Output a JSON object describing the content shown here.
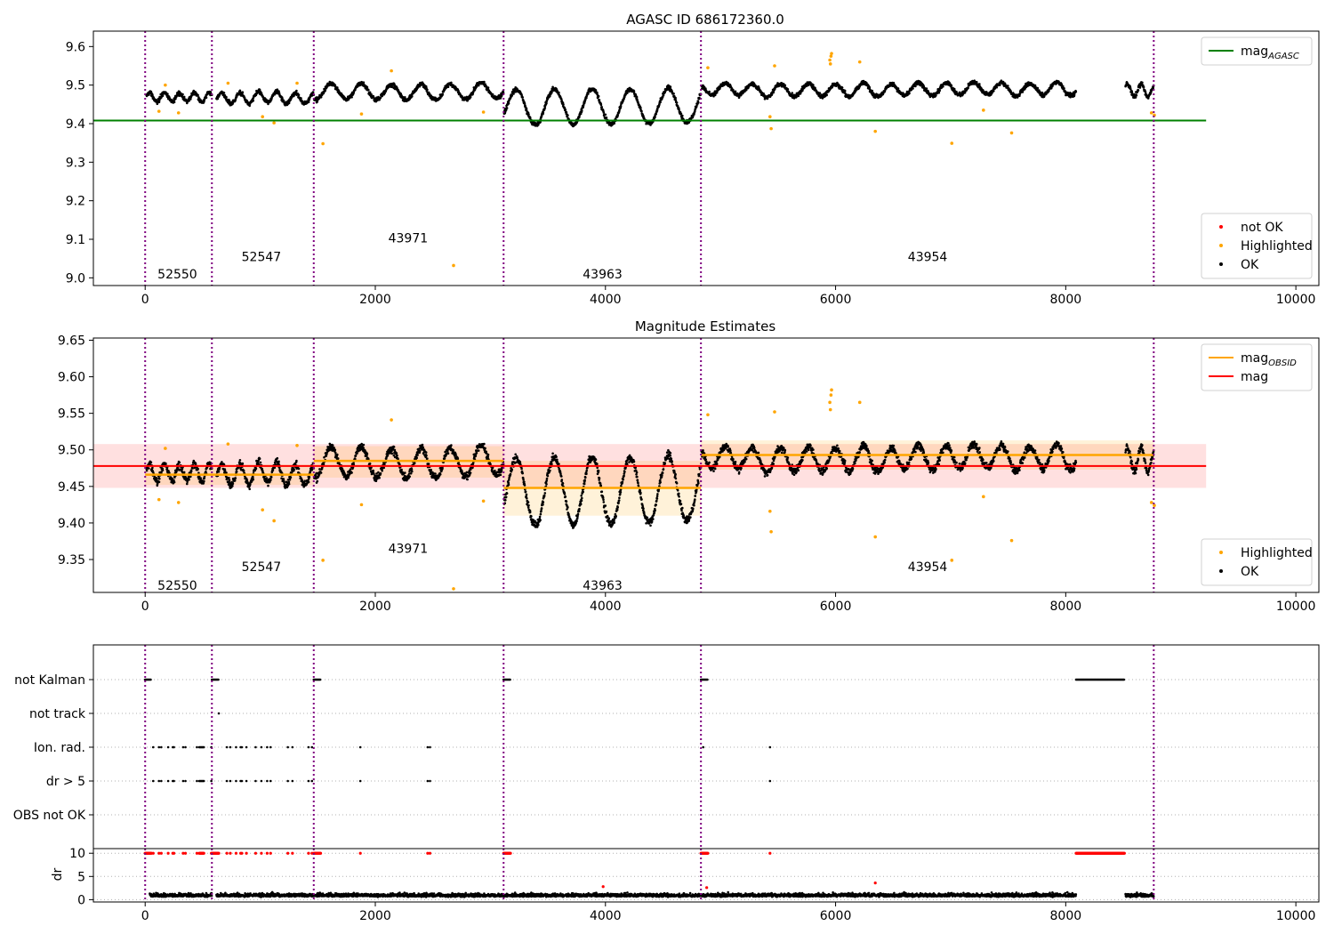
{
  "chart_data": [
    {
      "id": "agasc",
      "type": "scatter",
      "title": "AGASC ID 686172360.0",
      "xlim": [
        -450,
        10200
      ],
      "ylim": [
        8.98,
        9.64
      ],
      "xticks": [
        0,
        2000,
        4000,
        6000,
        8000,
        10000
      ],
      "xtick_labels": [
        "0",
        "2000",
        "4000",
        "6000",
        "8000",
        "10000"
      ],
      "yticks": [
        9.0,
        9.1,
        9.2,
        9.3,
        9.4,
        9.5,
        9.6
      ],
      "ytick_labels": [
        "9.0",
        "9.1",
        "9.2",
        "9.3",
        "9.4",
        "9.5",
        "9.6"
      ],
      "vlines": [
        0,
        580,
        1465,
        3115,
        4830,
        8765
      ],
      "obsid_labels": [
        {
          "text": "52550",
          "x": 280,
          "y": 9.01
        },
        {
          "text": "52547",
          "x": 1010,
          "y": 9.055
        },
        {
          "text": "43971",
          "x": 2285,
          "y": 9.103
        },
        {
          "text": "43963",
          "x": 3975,
          "y": 9.01
        },
        {
          "text": "43954",
          "x": 6800,
          "y": 9.055
        }
      ],
      "hlines": [
        {
          "name": "mag_AGASC",
          "y": 9.408,
          "x0": -450,
          "x1": 9220,
          "color": "#008000"
        }
      ],
      "segments": [
        {
          "x0": 10,
          "x1": 580,
          "base": 9.468,
          "amp": 0.012,
          "period": 130
        },
        {
          "x0": 620,
          "x1": 1465,
          "base": 9.466,
          "amp": 0.015,
          "period": 160
        },
        {
          "x0": 1470,
          "x1": 3115,
          "base": 9.483,
          "amp": 0.02,
          "period": 260
        },
        {
          "x0": 3120,
          "x1": 4830,
          "base": 9.445,
          "amp": 0.045,
          "period": 330
        },
        {
          "x0": 4835,
          "x1": 8090,
          "base": 9.49,
          "amp": 0.016,
          "period": 240
        },
        {
          "x0": 8520,
          "x1": 8765,
          "base": 9.488,
          "amp": 0.016,
          "period": 120
        }
      ],
      "highlighted": [
        [
          120,
          9.432
        ],
        [
          175,
          9.5
        ],
        [
          290,
          9.428
        ],
        [
          720,
          9.505
        ],
        [
          1020,
          9.418
        ],
        [
          1120,
          9.402
        ],
        [
          1320,
          9.505
        ],
        [
          1545,
          9.348
        ],
        [
          1880,
          9.425
        ],
        [
          2140,
          9.537
        ],
        [
          2680,
          9.032
        ],
        [
          2940,
          9.43
        ],
        [
          4890,
          9.545
        ],
        [
          5430,
          9.418
        ],
        [
          5440,
          9.387
        ],
        [
          5470,
          9.55
        ],
        [
          5950,
          9.565
        ],
        [
          5960,
          9.575
        ],
        [
          5955,
          9.555
        ],
        [
          5965,
          9.582
        ],
        [
          6210,
          9.56
        ],
        [
          6345,
          9.38
        ],
        [
          7010,
          9.349
        ],
        [
          7285,
          9.435
        ],
        [
          7530,
          9.376
        ],
        [
          8745,
          9.428
        ],
        [
          8770,
          9.422
        ]
      ],
      "legends": [
        {
          "position": "upper right",
          "entries": [
            {
              "label": "mag",
              "sub": "AGASC",
              "kind": "line",
              "color": "#008000"
            }
          ]
        },
        {
          "position": "lower right",
          "entries": [
            {
              "label": "not OK",
              "kind": "dot",
              "color": "#ff0000"
            },
            {
              "label": "Highlighted",
              "kind": "dot",
              "color": "#ffa500"
            },
            {
              "label": "OK",
              "kind": "dot",
              "color": "#000000"
            }
          ]
        }
      ]
    },
    {
      "id": "estimates",
      "type": "scatter",
      "title": "Magnitude Estimates",
      "xlim": [
        -450,
        10200
      ],
      "ylim": [
        9.305,
        9.653
      ],
      "xticks": [
        0,
        2000,
        4000,
        6000,
        8000,
        10000
      ],
      "xtick_labels": [
        "0",
        "2000",
        "4000",
        "6000",
        "8000",
        "10000"
      ],
      "yticks": [
        9.35,
        9.4,
        9.45,
        9.5,
        9.55,
        9.6,
        9.65
      ],
      "ytick_labels": [
        "9.35",
        "9.40",
        "9.45",
        "9.50",
        "9.55",
        "9.60",
        "9.65"
      ],
      "vlines": [
        0,
        580,
        1465,
        3115,
        4830,
        8765
      ],
      "obsid_labels": [
        {
          "text": "52550",
          "x": 280,
          "y": 9.315
        },
        {
          "text": "52547",
          "x": 1010,
          "y": 9.34
        },
        {
          "text": "43971",
          "x": 2285,
          "y": 9.365
        },
        {
          "text": "43963",
          "x": 3975,
          "y": 9.315
        },
        {
          "text": "43954",
          "x": 6800,
          "y": 9.34
        }
      ],
      "mag": {
        "y": 9.478,
        "band": [
          9.448,
          9.508
        ],
        "x0": -450,
        "x1": 9220,
        "color": "#ff0000"
      },
      "mag_obsid": [
        {
          "x0": 0,
          "x1": 1465,
          "y": 9.466,
          "band": [
            9.452,
            9.48
          ]
        },
        {
          "x0": 1465,
          "x1": 3115,
          "y": 9.485,
          "band": [
            9.462,
            9.505
          ]
        },
        {
          "x0": 3115,
          "x1": 4830,
          "y": 9.448,
          "band": [
            9.41,
            9.485
          ]
        },
        {
          "x0": 4830,
          "x1": 8765,
          "y": 9.493,
          "band": [
            9.473,
            9.513
          ]
        }
      ],
      "segments": [
        {
          "x0": 10,
          "x1": 580,
          "base": 9.468,
          "amp": 0.012,
          "period": 130
        },
        {
          "x0": 620,
          "x1": 1465,
          "base": 9.466,
          "amp": 0.015,
          "period": 160
        },
        {
          "x0": 1470,
          "x1": 3115,
          "base": 9.483,
          "amp": 0.02,
          "period": 260
        },
        {
          "x0": 3120,
          "x1": 4830,
          "base": 9.445,
          "amp": 0.045,
          "period": 330
        },
        {
          "x0": 4835,
          "x1": 8090,
          "base": 9.49,
          "amp": 0.016,
          "period": 240
        },
        {
          "x0": 8520,
          "x1": 8765,
          "base": 9.488,
          "amp": 0.016,
          "period": 120
        }
      ],
      "highlighted": [
        [
          120,
          9.432
        ],
        [
          175,
          9.502
        ],
        [
          290,
          9.428
        ],
        [
          720,
          9.508
        ],
        [
          1020,
          9.418
        ],
        [
          1120,
          9.403
        ],
        [
          1320,
          9.506
        ],
        [
          1545,
          9.349
        ],
        [
          1880,
          9.425
        ],
        [
          2140,
          9.541
        ],
        [
          2680,
          9.31
        ],
        [
          2940,
          9.43
        ],
        [
          4890,
          9.548
        ],
        [
          5430,
          9.416
        ],
        [
          5440,
          9.388
        ],
        [
          5470,
          9.552
        ],
        [
          5950,
          9.565
        ],
        [
          5960,
          9.575
        ],
        [
          5955,
          9.555
        ],
        [
          5965,
          9.582
        ],
        [
          6210,
          9.565
        ],
        [
          6345,
          9.381
        ],
        [
          7010,
          9.349
        ],
        [
          7285,
          9.436
        ],
        [
          7530,
          9.376
        ],
        [
          8745,
          9.428
        ],
        [
          8770,
          9.424
        ]
      ],
      "legends": [
        {
          "position": "upper right",
          "entries": [
            {
              "label": "mag",
              "sub": "OBSID",
              "kind": "line",
              "color": "#ffa500"
            },
            {
              "label": "mag",
              "sub": "",
              "kind": "line",
              "color": "#ff0000"
            }
          ]
        },
        {
          "position": "lower right",
          "entries": [
            {
              "label": "Highlighted",
              "kind": "dot",
              "color": "#ffa500"
            },
            {
              "label": "OK",
              "kind": "dot",
              "color": "#000000"
            }
          ]
        }
      ]
    },
    {
      "id": "flags",
      "type": "scatter",
      "xlim": [
        -450,
        10200
      ],
      "category_labels": [
        "not Kalman",
        "not track",
        "Ion. rad.",
        "dr > 5",
        "OBS not OK"
      ],
      "vlines": [
        0,
        580,
        1465,
        3115,
        4830,
        8765
      ],
      "flags": {
        "not Kalman": {
          "ranges": [
            [
              0,
              55
            ],
            [
              580,
              640
            ],
            [
              1465,
              1525
            ],
            [
              3115,
              3175
            ],
            [
              4830,
              4890
            ],
            [
              8090,
              8510
            ]
          ],
          "points": []
        },
        "not track": {
          "ranges": [],
          "points": [
            640
          ]
        },
        "Ion. rad.": {
          "ranges": [
            [
              470,
              510
            ]
          ],
          "points": [
            70,
            120,
            140,
            200,
            240,
            250,
            330,
            350,
            450,
            575,
            710,
            740,
            790,
            830,
            840,
            880,
            960,
            1010,
            1060,
            1090,
            1240,
            1280,
            1420,
            1450,
            1870,
            2455,
            2475,
            4850,
            5430
          ]
        },
        "dr > 5": {
          "ranges": [
            [
              470,
              510
            ]
          ],
          "points": [
            70,
            120,
            140,
            200,
            240,
            250,
            330,
            350,
            450,
            575,
            710,
            740,
            790,
            830,
            840,
            880,
            960,
            1010,
            1060,
            1090,
            1240,
            1280,
            1420,
            1450,
            1870,
            2455,
            2475,
            5430
          ]
        },
        "OBS not OK": {
          "ranges": [],
          "points": []
        }
      }
    },
    {
      "id": "dr",
      "type": "scatter",
      "ylabel": "dr",
      "xlim": [
        -450,
        10200
      ],
      "ylim": [
        -0.5,
        11
      ],
      "xticks": [
        0,
        2000,
        4000,
        6000,
        8000,
        10000
      ],
      "xtick_labels": [
        "0",
        "2000",
        "4000",
        "6000",
        "8000",
        "10000"
      ],
      "yticks": [
        0,
        5,
        10
      ],
      "ytick_labels": [
        "0",
        "5",
        "10"
      ],
      "vlines": [
        0,
        580,
        1465,
        3115,
        4830,
        8765
      ],
      "ok_segments": [
        [
          40,
          580
        ],
        [
          620,
          1465
        ],
        [
          1470,
          3115
        ],
        [
          3120,
          4830
        ],
        [
          4835,
          8090
        ],
        [
          8520,
          8765
        ]
      ],
      "ok_level": 1.0,
      "red_at_10": {
        "ranges": [
          [
            0,
            55
          ],
          [
            470,
            510
          ],
          [
            580,
            640
          ],
          [
            1465,
            1525
          ],
          [
            3115,
            3175
          ],
          [
            4830,
            4890
          ],
          [
            8090,
            8510
          ]
        ],
        "points": [
          70,
          120,
          140,
          200,
          240,
          250,
          330,
          350,
          450,
          575,
          710,
          740,
          790,
          830,
          840,
          880,
          960,
          1010,
          1060,
          1090,
          1240,
          1280,
          1420,
          1450,
          1870,
          2455,
          2475,
          5430
        ]
      },
      "red_outliers": [
        [
          3980,
          2.8
        ],
        [
          4880,
          2.6
        ],
        [
          6345,
          3.6
        ]
      ]
    }
  ]
}
